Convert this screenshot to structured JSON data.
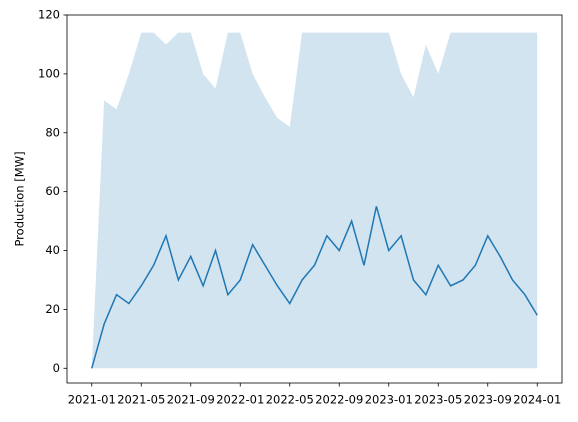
{
  "chart_data": {
    "type": "line",
    "ylabel": "Production [MW]",
    "x": [
      "2021-01",
      "2021-02",
      "2021-03",
      "2021-04",
      "2021-05",
      "2021-06",
      "2021-07",
      "2021-08",
      "2021-09",
      "2021-10",
      "2021-11",
      "2021-12",
      "2022-01",
      "2022-02",
      "2022-03",
      "2022-04",
      "2022-05",
      "2022-06",
      "2022-07",
      "2022-08",
      "2022-09",
      "2022-10",
      "2022-11",
      "2022-12",
      "2023-01",
      "2023-02",
      "2023-03",
      "2023-04",
      "2023-05",
      "2023-06",
      "2023-07",
      "2023-08",
      "2023-09",
      "2023-10",
      "2023-11",
      "2023-12",
      "2024-01"
    ],
    "series": [
      {
        "color": "#1f77b4",
        "values": [
          0,
          15,
          25,
          22,
          28,
          35,
          45,
          30,
          38,
          28,
          40,
          25,
          30,
          42,
          35,
          28,
          22,
          30,
          35,
          45,
          40,
          50,
          35,
          55,
          40,
          45,
          30,
          25,
          35,
          28,
          30,
          35,
          45,
          38,
          30,
          25,
          18
        ]
      }
    ],
    "band": {
      "color": "#1f77b4",
      "opacity": 0.2,
      "values": [
        0,
        91,
        88,
        100,
        114,
        114,
        110,
        114,
        114,
        100,
        95,
        114,
        114,
        100,
        92,
        85,
        82,
        114,
        114,
        114,
        114,
        114,
        114,
        114,
        114,
        100,
        92,
        110,
        100,
        114,
        114,
        114,
        114,
        114,
        114,
        114,
        114
      ]
    },
    "xlim": [
      "2020-11",
      "2024-03"
    ],
    "xticks": [
      "2021-01",
      "2021-05",
      "2021-09",
      "2022-01",
      "2022-05",
      "2022-09",
      "2023-01",
      "2023-05",
      "2023-09",
      "2024-01"
    ],
    "ylim": [
      -5,
      120
    ],
    "yticks": [
      0,
      20,
      40,
      60,
      80,
      100,
      120
    ]
  }
}
